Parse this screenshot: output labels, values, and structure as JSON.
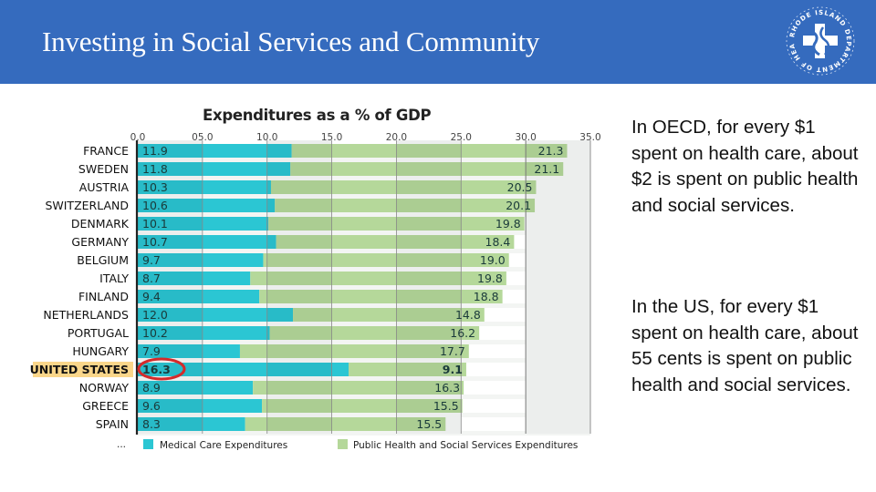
{
  "header": {
    "title": "Investing in Social Services and Community",
    "logo": {
      "icon": "rhode-island-department-of-health-seal",
      "ring_text": "RHODE ISLAND DEPARTMENT OF HEALTH"
    }
  },
  "colors": {
    "header_bg": "#356BBE",
    "medical": "#2BC6D3",
    "social": "#B5D89A",
    "highlight": "#FAD68A",
    "circle": "#D42A2A"
  },
  "chart_data": {
    "type": "bar",
    "orientation": "horizontal",
    "stacked": true,
    "title": "Expenditures as a % of GDP",
    "xlabel": "",
    "ylabel": "",
    "xlim": [
      0,
      35
    ],
    "x_ticks": [
      "0.0",
      "05.0",
      "10.0",
      "15.0",
      "20.0",
      "25.0",
      "30.0",
      "35.0"
    ],
    "x_tick_values": [
      0,
      5,
      10,
      15,
      20,
      25,
      30,
      35
    ],
    "grid": true,
    "legend_position": "bottom",
    "categories": [
      "FRANCE",
      "SWEDEN",
      "AUSTRIA",
      "SWITZERLAND",
      "DENMARK",
      "GERMANY",
      "BELGIUM",
      "ITALY",
      "FINLAND",
      "NETHERLANDS",
      "PORTUGAL",
      "HUNGARY",
      "UNITED STATES",
      "NORWAY",
      "GREECE",
      "SPAIN"
    ],
    "highlighted_category": "UNITED STATES",
    "series": [
      {
        "name": "Medical Care Expenditures",
        "color": "#2BC6D3",
        "values": [
          11.9,
          11.8,
          10.3,
          10.6,
          10.1,
          10.7,
          9.7,
          8.7,
          9.4,
          12.0,
          10.2,
          7.9,
          16.3,
          8.9,
          9.6,
          8.3
        ]
      },
      {
        "name": "Public Health and Social Services Expenditures",
        "color": "#B5D89A",
        "values": [
          21.3,
          21.1,
          20.5,
          20.1,
          19.8,
          18.4,
          19.0,
          19.8,
          18.8,
          14.8,
          16.2,
          17.7,
          9.1,
          16.3,
          15.5,
          15.5
        ]
      }
    ],
    "annotations": [
      "Red circle around United States medical value 16.3",
      "Ellipsis '...' indicating more countries"
    ],
    "more_indicator": "..."
  },
  "side_notes": [
    "In OECD, for every $1 spent on health care, about $2 is spent on public health and social services.",
    "In the US, for every $1 spent on health care, about 55 cents is spent on public health and social services."
  ]
}
